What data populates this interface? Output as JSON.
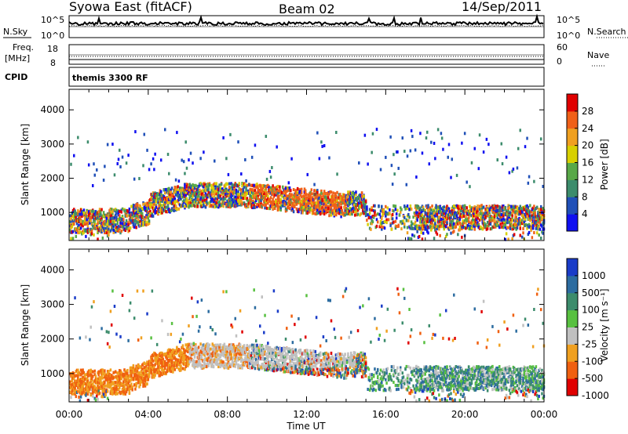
{
  "header": {
    "station": "Syowa East (fitACF)",
    "beam": "Beam 02",
    "date": "14/Sep/2011"
  },
  "noise_panel": {
    "left_label": "N.Sky",
    "right_label": "N.Search",
    "left_ticks": [
      "10^5",
      "10^0"
    ],
    "right_ticks": [
      "10^5",
      "10^0"
    ]
  },
  "freq_panel": {
    "left_label_1": "Freq.",
    "left_label_2": "[MHz]",
    "right_label": "Nave",
    "left_ticks": [
      "18",
      "8"
    ],
    "right_ticks": [
      "60",
      "0"
    ]
  },
  "cpid_panel": {
    "label": "CPID",
    "program": "themis 3300 RF"
  },
  "x_axis": {
    "label": "Time UT",
    "ticks": [
      "00:00",
      "04:00",
      "08:00",
      "12:00",
      "16:00",
      "20:00",
      "00:00"
    ]
  },
  "chart_data": [
    {
      "type": "heatmap",
      "ylabel": "Slant Range [km]",
      "xlabel": "Time UT",
      "xlim": [
        0,
        24
      ],
      "ylim": [
        180,
        4600
      ],
      "y_ticks": [
        1000,
        2000,
        3000,
        4000
      ],
      "colorbar": {
        "label": "Power [dB]",
        "ticks": [
          "4",
          "8",
          "12",
          "16",
          "20",
          "24",
          "28"
        ],
        "colors": [
          "#1010f0",
          "#2050b8",
          "#3c8c6c",
          "#58a848",
          "#d8d000",
          "#f0a020",
          "#f06018",
          "#e00000"
        ]
      }
    },
    {
      "type": "heatmap",
      "ylabel": "Slant Range [km]",
      "xlabel": "Time UT",
      "xlim": [
        0,
        24
      ],
      "ylim": [
        180,
        4600
      ],
      "y_ticks": [
        1000,
        2000,
        3000,
        4000
      ],
      "colorbar": {
        "label": "Velocity [m s⁻¹]",
        "ticks": [
          "1000",
          "500",
          "100",
          "25",
          "-25",
          "-100",
          "-500",
          "-1000"
        ],
        "colors": [
          "#1a3cc8",
          "#2c6ca0",
          "#3c8c6c",
          "#58c040",
          "#c0c0c0",
          "#f0a020",
          "#f06010",
          "#e00000"
        ]
      }
    }
  ]
}
